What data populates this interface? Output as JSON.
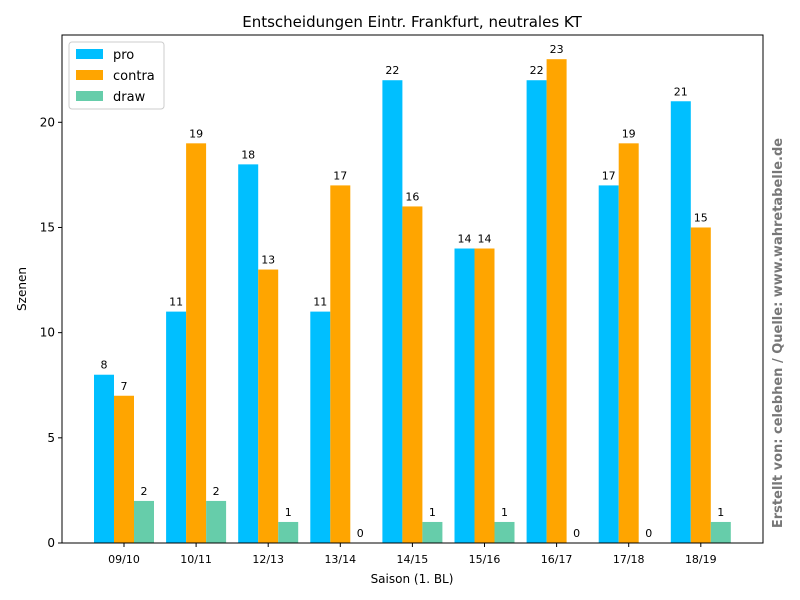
{
  "chart_data": {
    "type": "bar",
    "title": "Entscheidungen Eintr. Frankfurt, neutrales KT",
    "xlabel": "Saison (1. BL)",
    "ylabel": "Szenen",
    "categories": [
      "09/10",
      "10/11",
      "12/13",
      "13/14",
      "14/15",
      "15/16",
      "16/17",
      "17/18",
      "18/19"
    ],
    "series": [
      {
        "name": "pro",
        "color": "#00bfff",
        "values": [
          8,
          11,
          18,
          11,
          22,
          14,
          22,
          17,
          21
        ]
      },
      {
        "name": "contra",
        "color": "#ffa500",
        "values": [
          7,
          19,
          13,
          17,
          16,
          14,
          23,
          19,
          15
        ]
      },
      {
        "name": "draw",
        "color": "#66cdaa",
        "values": [
          2,
          2,
          1,
          0,
          1,
          1,
          0,
          0,
          1
        ]
      }
    ],
    "ylim": [
      0,
      24.15
    ],
    "yticks": [
      0,
      5,
      10,
      15,
      20
    ],
    "legend": "upper-left",
    "grid": false
  },
  "credit": "Erstellt von: celebhen / Quelle: www.wahretabelle.de"
}
